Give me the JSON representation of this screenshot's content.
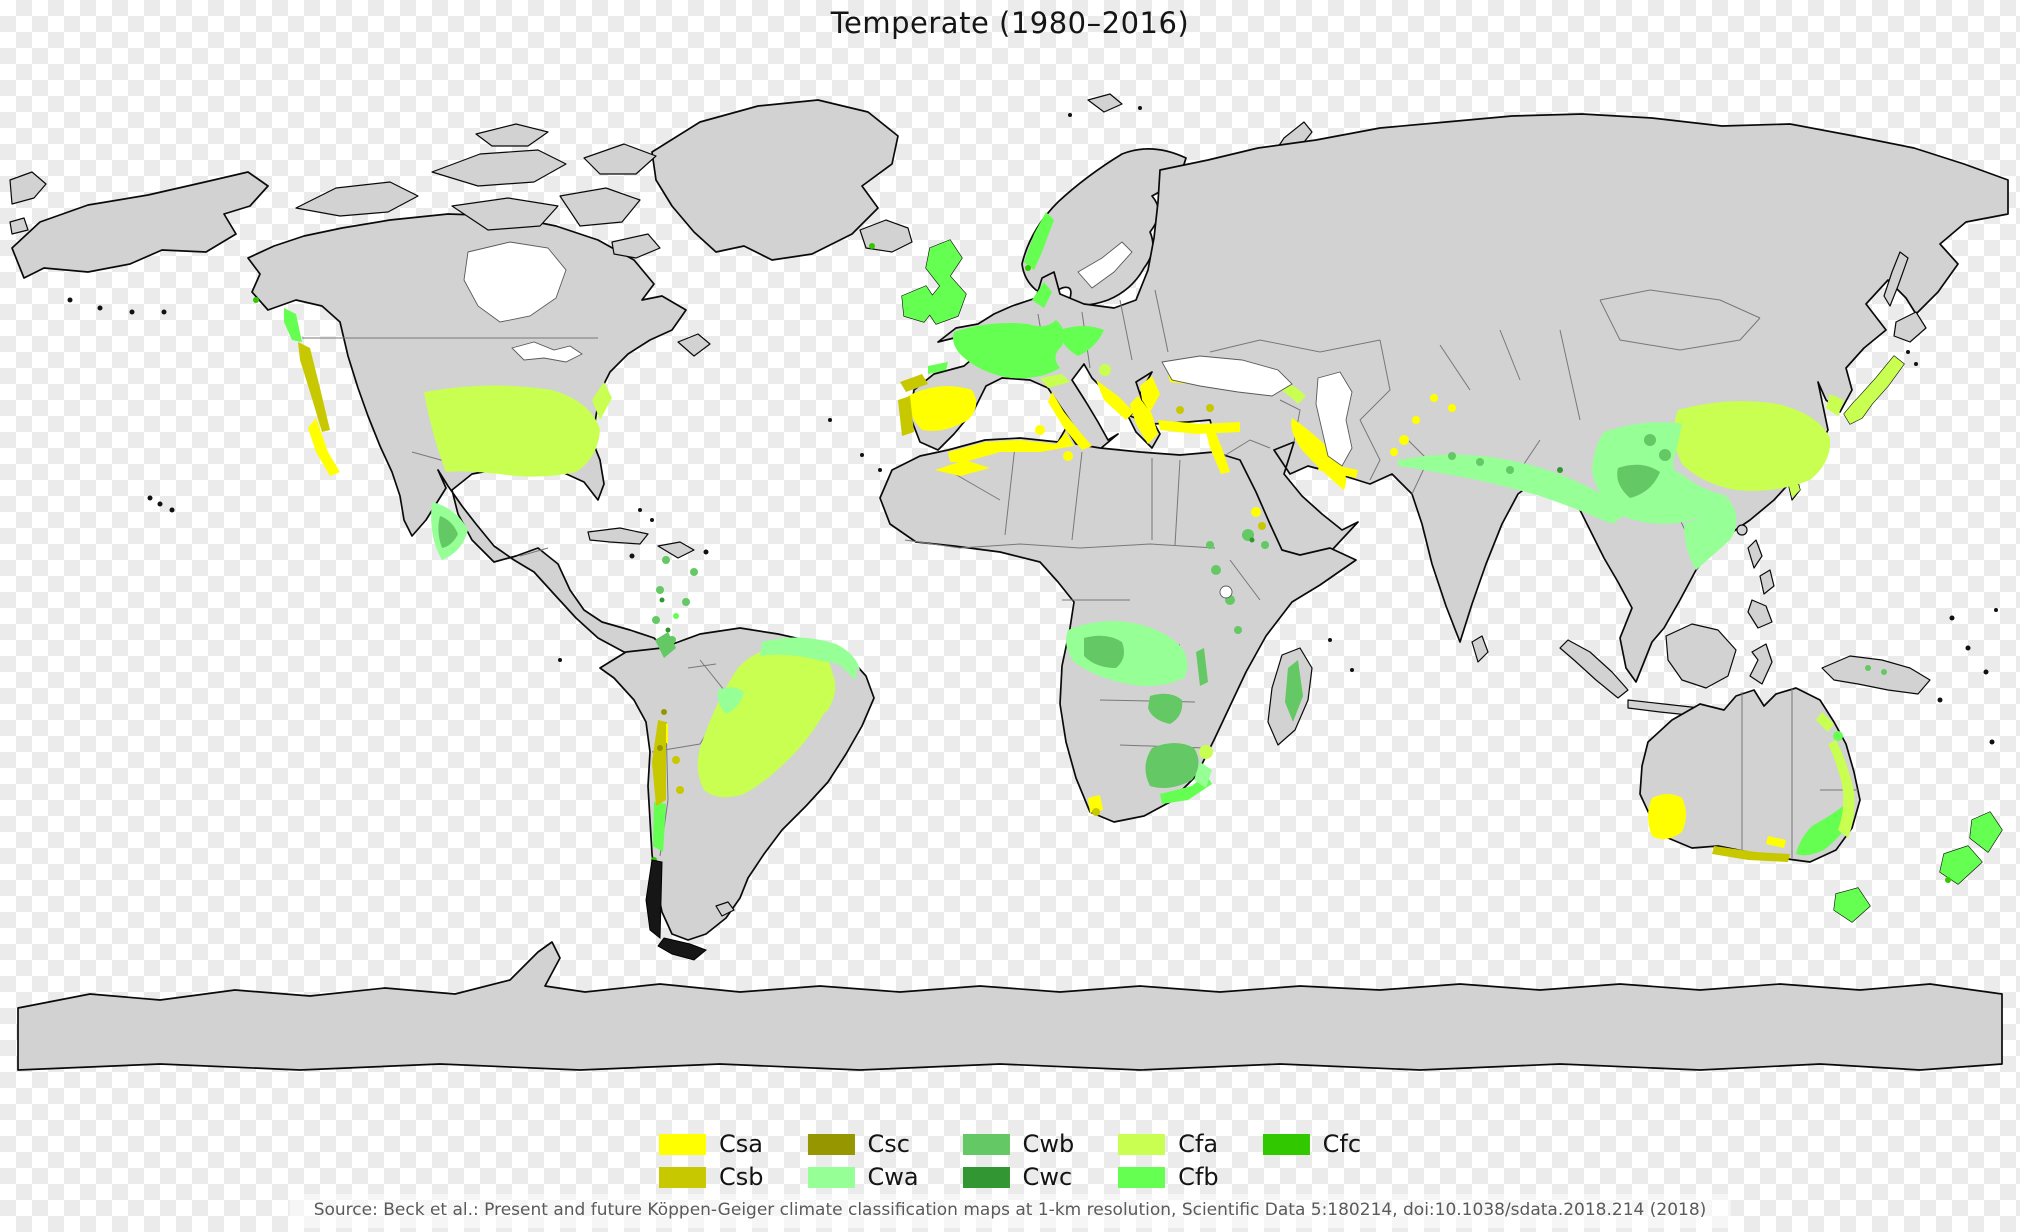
{
  "title": "Temperate (1980–2016)",
  "source": "Source: Beck et al.: Present and future Köppen-Geiger climate classification maps at 1-km resolution, Scientific Data 5:180214, doi:10.1038/sdata.2018.214 (2018)",
  "legend": {
    "columns": 5,
    "rows": 2,
    "items": [
      {
        "code": "Csa",
        "color": "#FFFF00"
      },
      {
        "code": "Csb",
        "color": "#C8C800"
      },
      {
        "code": "Csc",
        "color": "#969600"
      },
      {
        "code": "Cwa",
        "color": "#96FF96"
      },
      {
        "code": "Cwb",
        "color": "#64C864"
      },
      {
        "code": "Cwc",
        "color": "#329632"
      },
      {
        "code": "Cfa",
        "color": "#C8FF50"
      },
      {
        "code": "Cfb",
        "color": "#64FF50"
      },
      {
        "code": "Cfc",
        "color": "#32C800"
      }
    ]
  },
  "map": {
    "type": "choropleth-world-map",
    "theme": "Köppen-Geiger temperate (C) climate classes",
    "land_color": "#D2D2D2",
    "coast_color": "#0A0A0A",
    "border_color": "#787878",
    "lake_color": "#FFFFFF",
    "ocean": "transparent (checkerboard)",
    "checker_colors": [
      "#FFFFFF",
      "#EBEBEB"
    ]
  }
}
